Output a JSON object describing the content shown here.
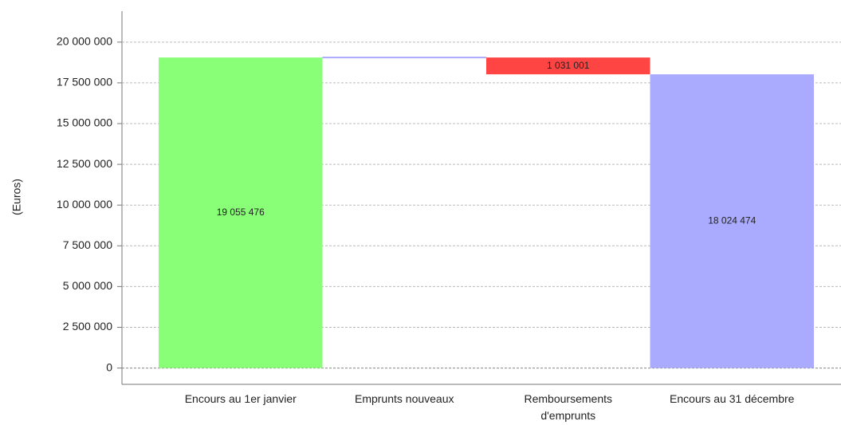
{
  "chart_data": {
    "type": "waterfall",
    "y_label": "(Euros)",
    "categories": [
      "Encours au 1er janvier",
      "Emprunts nouveaux",
      "Remboursements d'emprunts",
      "Encours au 31 décembre"
    ],
    "values": [
      19055476,
      0,
      -1031001,
      18024474
    ],
    "value_labels": [
      "19 055 476",
      null,
      "1 031 001",
      "18 024 474"
    ],
    "colors": [
      "#88ff77",
      "#aaaaff",
      "#ff4444",
      "#aaaaff"
    ],
    "ylim": [
      -1000000,
      21900000
    ],
    "yticks": [
      {
        "value": 0,
        "label": "0"
      },
      {
        "value": 2500000,
        "label": "2 500 000"
      },
      {
        "value": 5000000,
        "label": "5 000 000"
      },
      {
        "value": 7500000,
        "label": "7 500 000"
      },
      {
        "value": 10000000,
        "label": "10 000 000"
      },
      {
        "value": 12500000,
        "label": "12 500 000"
      },
      {
        "value": 15000000,
        "label": "15 000 000"
      },
      {
        "value": 17500000,
        "label": "17 500 000"
      },
      {
        "value": 20000000,
        "label": "20 000 000"
      }
    ],
    "grid": true
  }
}
